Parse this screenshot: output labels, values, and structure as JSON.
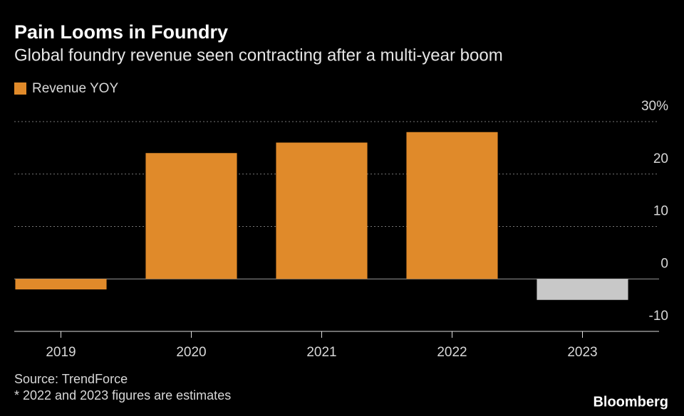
{
  "chart_data": {
    "type": "bar",
    "title": "Pain Looms in Foundry",
    "subtitle": "Global foundry revenue seen contracting after a multi-year boom",
    "categories": [
      "2019",
      "2020",
      "2021",
      "2022",
      "2023"
    ],
    "series": [
      {
        "name": "Revenue YOY",
        "color": "#e08a2a",
        "values": [
          -2,
          24,
          26,
          28,
          -4
        ]
      }
    ],
    "colors": [
      "#e08a2a",
      "#e08a2a",
      "#e08a2a",
      "#e08a2a",
      "#c8c8c8"
    ],
    "ylim": [
      -10,
      30
    ],
    "yticks": [
      -10,
      0,
      10,
      20,
      {
        "value": 30,
        "label": "30%"
      }
    ],
    "grid": true,
    "source": "Source: TrendForce",
    "note": "* 2022 and 2023 figures are estimates",
    "brand": "Bloomberg"
  }
}
